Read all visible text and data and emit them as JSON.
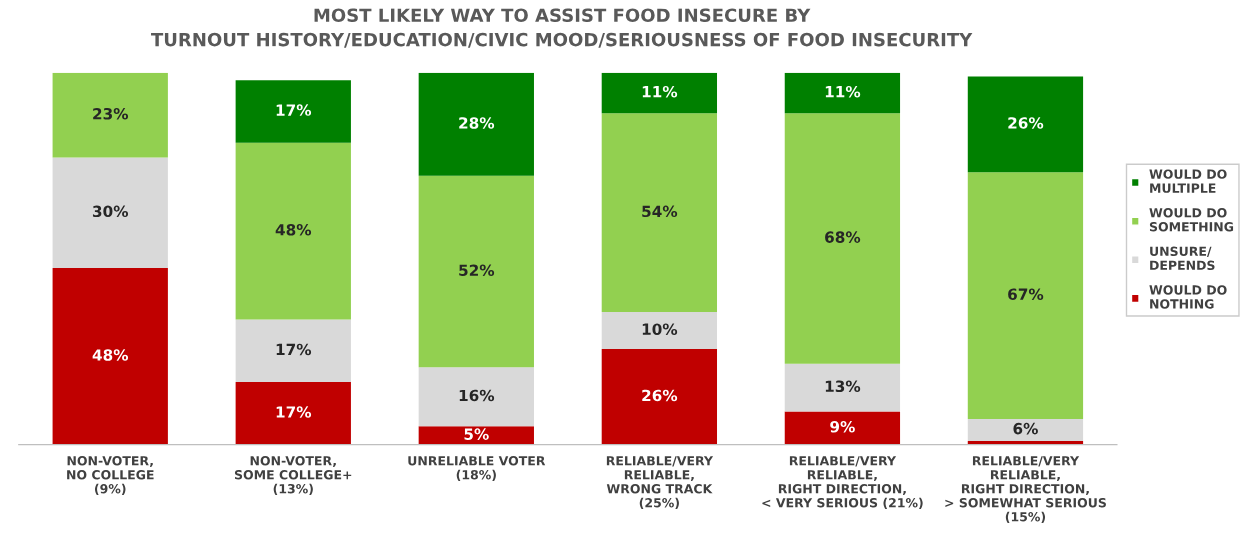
{
  "chart_data": {
    "type": "bar",
    "stacked": true,
    "title": "MOST LIKELY WAY TO ASSIST FOOD INSECURE BY\nTURNOUT HISTORY/EDUCATION/CIVIC MOOD/SERIOUSNESS OF FOOD INSECURITY",
    "categories": [
      "NON-VOTER,\nNO COLLEGE\n(9%)",
      "NON-VOTER,\nSOME COLLEGE+\n(13%)",
      "UNRELIABLE VOTER\n(18%)",
      "RELIABLE/VERY\nRELIABLE,\nWRONG TRACK\n(25%)",
      "RELIABLE/VERY\nRELIABLE,\nRIGHT DIRECTION,\n< VERY SERIOUS (21%)",
      "RELIABLE/VERY\nRELIABLE,\nRIGHT DIRECTION,\n> SOMEWHAT SERIOUS\n(15%)"
    ],
    "series": [
      {
        "name": "WOULD DO\nNOTHING",
        "color": "#c00000",
        "values": [
          48,
          17,
          5,
          26,
          9,
          1
        ],
        "value_labels": [
          "48%",
          "17%",
          "5%",
          "26%",
          "9%",
          null
        ]
      },
      {
        "name": "UNSURE/\nDEPENDS",
        "color": "#d9d9d9",
        "values": [
          30,
          17,
          16,
          10,
          13,
          6
        ],
        "value_labels": [
          "30%",
          "17%",
          "16%",
          "10%",
          "13%",
          "6%"
        ]
      },
      {
        "name": "WOULD DO\nSOMETHING",
        "color": "#92d050",
        "values": [
          23,
          48,
          52,
          54,
          68,
          67
        ],
        "value_labels": [
          "23%",
          "48%",
          "52%",
          "54%",
          "68%",
          "67%"
        ]
      },
      {
        "name": "WOULD DO\nMULTIPLE",
        "color": "#008000",
        "values": [
          null,
          17,
          28,
          11,
          11,
          26
        ],
        "value_labels": [
          null,
          "17%",
          "28%",
          "11%",
          "11%",
          "26%"
        ]
      }
    ],
    "legend": "right",
    "grid": false
  }
}
